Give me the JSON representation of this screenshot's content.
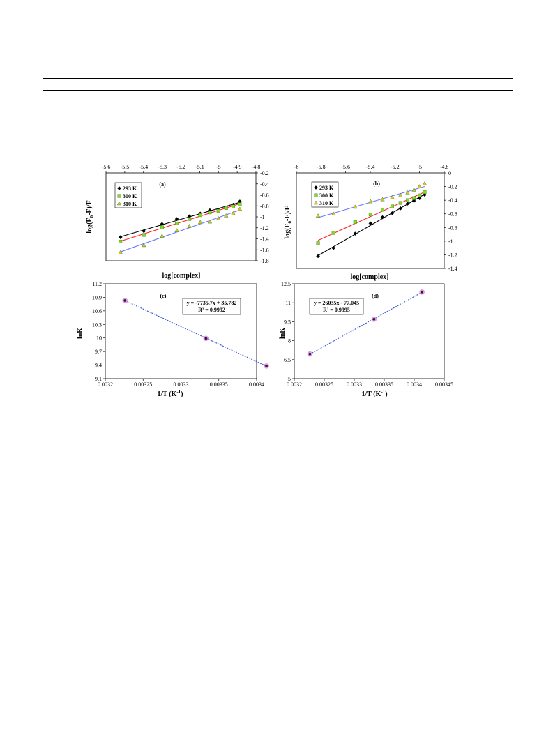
{
  "chart_data": [
    {
      "id": "a",
      "type": "scatter",
      "panel_label": "(a)",
      "xlabel": "log[complex]",
      "ylabel": "log(F0-F)/F",
      "xlim": [
        -5.6,
        -4.8
      ],
      "ylim": [
        -1.8,
        -0.2
      ],
      "xticks": [
        -5.6,
        -5.5,
        -5.4,
        -5.3,
        -5.2,
        -5.1,
        -5.0,
        -4.9,
        -4.8
      ],
      "yticks": [
        -1.8,
        -1.6,
        -1.4,
        -1.2,
        -1.0,
        -0.8,
        -0.6,
        -0.4,
        -0.2
      ],
      "xtick_labels": [
        "-5.6",
        "-5.5",
        "-5.4",
        "-5.3",
        "-5.2",
        "-5.1",
        "-5",
        "-4.9",
        "-4.8"
      ],
      "ytick_labels": [
        "-1.8",
        "-1.6",
        "-1.4",
        "-1.2",
        "-1",
        "-0.8",
        "-0.6",
        "-0.4",
        "-0.2"
      ],
      "x_axis_position": "top",
      "y_axis_position": "right",
      "legend_position": "top-left",
      "series": [
        {
          "name": "293 K",
          "marker": "diamond",
          "color": "#000000",
          "line_color": "#000000",
          "x": [
            -5.523,
            -5.398,
            -5.301,
            -5.222,
            -5.155,
            -5.097,
            -5.046,
            -5.0,
            -4.959,
            -4.921,
            -4.886
          ],
          "y": [
            -1.37,
            -1.26,
            -1.13,
            -1.04,
            -0.99,
            -0.94,
            -0.88,
            -0.87,
            -0.83,
            -0.78,
            -0.72
          ]
        },
        {
          "name": "300 K",
          "marker": "square",
          "color": "#7fdc26",
          "line_color": "#ff2020",
          "x": [
            -5.523,
            -5.398,
            -5.301,
            -5.222,
            -5.155,
            -5.097,
            -5.046,
            -5.0,
            -4.959,
            -4.921,
            -4.886
          ],
          "y": [
            -1.45,
            -1.33,
            -1.19,
            -1.12,
            -1.04,
            -0.97,
            -0.92,
            -0.89,
            -0.84,
            -0.81,
            -0.77
          ]
        },
        {
          "name": "310 K",
          "marker": "triangle",
          "color": "#e8c020",
          "line_color": "#6a7aff",
          "x": [
            -5.523,
            -5.398,
            -5.301,
            -5.222,
            -5.155,
            -5.097,
            -5.046,
            -5.0,
            -4.959,
            -4.921,
            -4.886
          ],
          "y": [
            -1.65,
            -1.52,
            -1.35,
            -1.25,
            -1.17,
            -1.1,
            -1.09,
            -1.03,
            -0.98,
            -0.94,
            -0.86
          ]
        }
      ]
    },
    {
      "id": "b",
      "type": "scatter",
      "panel_label": "(b)",
      "xlabel": "log[complex]",
      "ylabel": "log(F0-F)/F",
      "xlim": [
        -6.0,
        -4.8
      ],
      "ylim": [
        -1.4,
        0.0
      ],
      "xticks": [
        -6.0,
        -5.8,
        -5.6,
        -5.4,
        -5.2,
        -5.0,
        -4.8
      ],
      "yticks": [
        -1.4,
        -1.2,
        -1.0,
        -0.8,
        -0.6,
        -0.4,
        -0.2,
        0.0
      ],
      "xtick_labels": [
        "-6",
        "-5.8",
        "-5.6",
        "-5.4",
        "-5.2",
        "-5",
        "-4.8"
      ],
      "ytick_labels": [
        "-1.4",
        "-1.2",
        "-1",
        "-0.8",
        "-0.6",
        "-0.4",
        "-0.2",
        "0"
      ],
      "x_axis_position": "top",
      "y_axis_position": "right",
      "legend_position": "top-left",
      "series": [
        {
          "name": "293 K",
          "marker": "diamond",
          "color": "#000000",
          "line_color": "#000000",
          "x": [
            -5.824,
            -5.699,
            -5.523,
            -5.398,
            -5.301,
            -5.222,
            -5.155,
            -5.097,
            -5.046,
            -5.0,
            -4.959
          ],
          "y": [
            -1.22,
            -1.1,
            -0.89,
            -0.74,
            -0.65,
            -0.59,
            -0.52,
            -0.45,
            -0.41,
            -0.37,
            -0.32
          ]
        },
        {
          "name": "300 K",
          "marker": "square",
          "color": "#7fdc26",
          "line_color": "#ff2020",
          "x": [
            -5.824,
            -5.699,
            -5.523,
            -5.398,
            -5.301,
            -5.222,
            -5.155,
            -5.097,
            -5.046,
            -5.0,
            -4.959
          ],
          "y": [
            -1.03,
            -0.88,
            -0.72,
            -0.61,
            -0.54,
            -0.49,
            -0.44,
            -0.4,
            -0.37,
            -0.33,
            -0.28
          ]
        },
        {
          "name": "310 K",
          "marker": "triangle",
          "color": "#e8c020",
          "line_color": "#6a7aff",
          "x": [
            -5.824,
            -5.699,
            -5.523,
            -5.398,
            -5.301,
            -5.222,
            -5.155,
            -5.097,
            -5.046,
            -5.0,
            -4.959
          ],
          "y": [
            -0.63,
            -0.6,
            -0.5,
            -0.42,
            -0.39,
            -0.36,
            -0.33,
            -0.29,
            -0.25,
            -0.2,
            -0.16
          ]
        }
      ]
    },
    {
      "id": "c",
      "type": "scatter",
      "panel_label": "(c)",
      "xlabel": "1/T (K",
      "xlabel_sup": "-1",
      "xlabel_end": ")",
      "ylabel": "lnK",
      "xlim": [
        0.0032,
        0.0034
      ],
      "ylim": [
        9.1,
        11.2
      ],
      "xticks": [
        0.0032,
        0.00325,
        0.0033,
        0.00335,
        0.0034
      ],
      "yticks": [
        9.1,
        9.4,
        9.7,
        10.0,
        10.3,
        10.6,
        10.9,
        11.2
      ],
      "xtick_labels": [
        "0.0032",
        "0.00325",
        "0.0033",
        "0.00335",
        "0.0034"
      ],
      "ytick_labels": [
        "9.1",
        "9.4",
        "9.7",
        "10",
        "10.3",
        "10.6",
        "10.9",
        "11.2"
      ],
      "equation": "y = -7735.7x + 35.782",
      "r_squared": "R² = 0.9992",
      "series": [
        {
          "marker": "circle",
          "color": "#c050c0",
          "line_color": "#3050d0",
          "x": [
            0.003226,
            0.003333,
            0.003413
          ],
          "y": [
            10.83,
            9.99,
            9.38
          ]
        }
      ]
    },
    {
      "id": "d",
      "type": "scatter",
      "panel_label": "(d)",
      "xlabel": "1/T (K",
      "xlabel_sup": "-1",
      "xlabel_end": ")",
      "ylabel": "lnK",
      "xlim": [
        0.0032,
        0.00345
      ],
      "ylim": [
        5.0,
        12.5
      ],
      "xticks": [
        0.0032,
        0.00325,
        0.0033,
        0.00335,
        0.0034,
        0.00345
      ],
      "yticks": [
        5.0,
        6.5,
        8.0,
        9.5,
        11.0,
        12.5
      ],
      "xtick_labels": [
        "0.0032",
        "0.00325",
        "0.0033",
        "0.00335",
        "0.0034",
        "0.00345"
      ],
      "ytick_labels": [
        "5",
        "6.5",
        "8",
        "9.5",
        "11",
        "12.5"
      ],
      "equation": "y = 26035x - 77.045",
      "r_squared": "R² = 0.9995",
      "series": [
        {
          "marker": "circle",
          "color": "#c050c0",
          "line_color": "#3050d0",
          "x": [
            0.003226,
            0.003333,
            0.003413
          ],
          "y": [
            6.95,
            9.7,
            11.85
          ]
        }
      ]
    }
  ]
}
